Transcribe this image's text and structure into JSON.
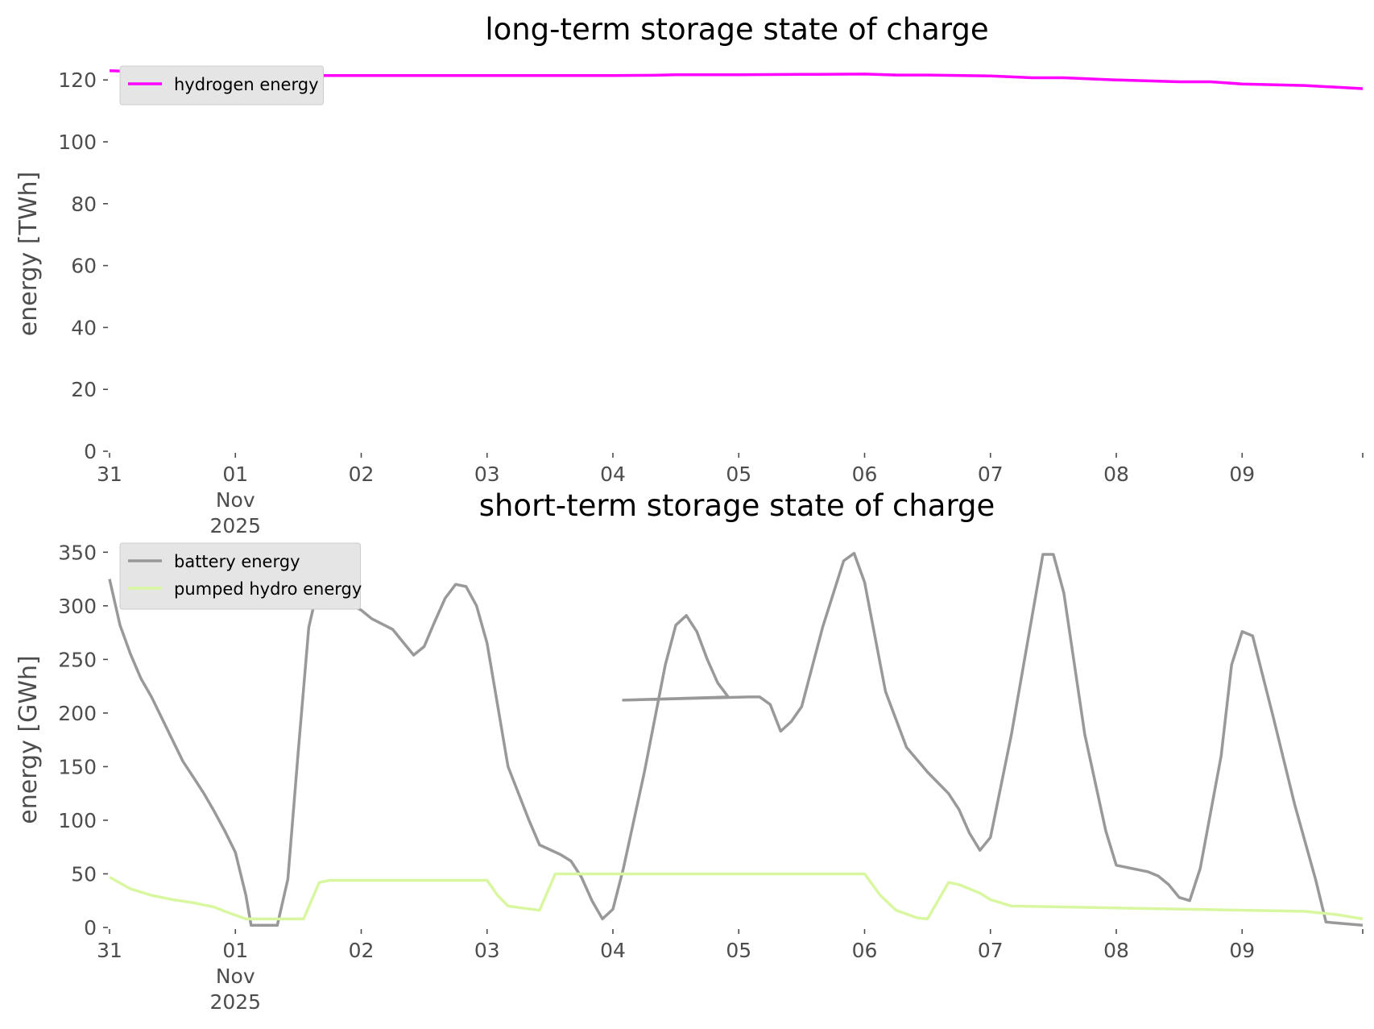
{
  "chart_data": [
    {
      "type": "line",
      "title": "long-term storage state of charge",
      "ylabel": "energy [TWh]",
      "xlabel": "",
      "ylim": [
        0,
        125
      ],
      "yticks": [
        0,
        20,
        40,
        60,
        80,
        100,
        120
      ],
      "xlim": [
        "2025-10-31 00:00",
        "2025-11-09 23:00"
      ],
      "xticks": [
        {
          "x": "2025-10-31",
          "lines": [
            "31"
          ]
        },
        {
          "x": "2025-11-01",
          "lines": [
            "01",
            "Nov",
            "2025"
          ]
        },
        {
          "x": "2025-11-02",
          "lines": [
            "02"
          ]
        },
        {
          "x": "2025-11-03",
          "lines": [
            "03"
          ]
        },
        {
          "x": "2025-11-04",
          "lines": [
            "04"
          ]
        },
        {
          "x": "2025-11-05",
          "lines": [
            "05"
          ]
        },
        {
          "x": "2025-11-06",
          "lines": [
            "06"
          ]
        },
        {
          "x": "2025-11-07",
          "lines": [
            "07"
          ]
        },
        {
          "x": "2025-11-08",
          "lines": [
            "08"
          ]
        },
        {
          "x": "2025-11-09",
          "lines": [
            "09"
          ]
        }
      ],
      "grid": false,
      "legend_position": "upper-left",
      "series": [
        {
          "name": "hydrogen energy",
          "color": "#ff00ff",
          "points": [
            [
              "2025-10-31 00:00",
              123.0
            ],
            [
              "2025-10-31 12:00",
              122.3
            ],
            [
              "2025-11-01 00:00",
              121.6
            ],
            [
              "2025-11-01 12:00",
              121.4
            ],
            [
              "2025-11-02 00:00",
              121.4
            ],
            [
              "2025-11-02 12:00",
              121.4
            ],
            [
              "2025-11-03 00:00",
              121.4
            ],
            [
              "2025-11-03 12:00",
              121.4
            ],
            [
              "2025-11-04 00:00",
              121.4
            ],
            [
              "2025-11-04 08:00",
              121.5
            ],
            [
              "2025-11-04 12:00",
              121.7
            ],
            [
              "2025-11-05 00:00",
              121.7
            ],
            [
              "2025-11-05 12:00",
              121.8
            ],
            [
              "2025-11-06 00:00",
              121.9
            ],
            [
              "2025-11-06 06:00",
              121.6
            ],
            [
              "2025-11-06 12:00",
              121.6
            ],
            [
              "2025-11-07 00:00",
              121.3
            ],
            [
              "2025-11-07 08:00",
              120.7
            ],
            [
              "2025-11-07 14:00",
              120.7
            ],
            [
              "2025-11-08 00:00",
              120.0
            ],
            [
              "2025-11-08 12:00",
              119.4
            ],
            [
              "2025-11-08 18:00",
              119.4
            ],
            [
              "2025-11-09 00:00",
              118.7
            ],
            [
              "2025-11-09 12:00",
              118.2
            ],
            [
              "2025-11-09 23:00",
              117.2
            ]
          ]
        }
      ]
    },
    {
      "type": "line",
      "title": "short-term storage state of charge",
      "ylabel": "energy [GWh]",
      "xlabel": "",
      "ylim": [
        0,
        360
      ],
      "yticks": [
        0,
        50,
        100,
        150,
        200,
        250,
        300,
        350
      ],
      "xlim": [
        "2025-10-31 00:00",
        "2025-11-09 23:00"
      ],
      "xticks": [
        {
          "x": "2025-10-31",
          "lines": [
            "31"
          ]
        },
        {
          "x": "2025-11-01",
          "lines": [
            "01",
            "Nov",
            "2025"
          ]
        },
        {
          "x": "2025-11-02",
          "lines": [
            "02"
          ]
        },
        {
          "x": "2025-11-03",
          "lines": [
            "03"
          ]
        },
        {
          "x": "2025-11-04",
          "lines": [
            "04"
          ]
        },
        {
          "x": "2025-11-05",
          "lines": [
            "05"
          ]
        },
        {
          "x": "2025-11-06",
          "lines": [
            "06"
          ]
        },
        {
          "x": "2025-11-07",
          "lines": [
            "07"
          ]
        },
        {
          "x": "2025-11-08",
          "lines": [
            "08"
          ]
        },
        {
          "x": "2025-11-09",
          "lines": [
            "09"
          ]
        }
      ],
      "grid": false,
      "legend_position": "upper-left",
      "series": [
        {
          "name": "battery energy",
          "color": "#999999",
          "points": [
            [
              "2025-10-31 00:00",
              325
            ],
            [
              "2025-10-31 02:00",
              282
            ],
            [
              "2025-10-31 04:00",
              255
            ],
            [
              "2025-10-31 06:00",
              232
            ],
            [
              "2025-10-31 08:00",
              215
            ],
            [
              "2025-10-31 10:00",
              195
            ],
            [
              "2025-10-31 12:00",
              175
            ],
            [
              "2025-10-31 14:00",
              155
            ],
            [
              "2025-10-31 16:00",
              140
            ],
            [
              "2025-10-31 18:00",
              125
            ],
            [
              "2025-10-31 20:00",
              108
            ],
            [
              "2025-10-31 22:00",
              90
            ],
            [
              "2025-11-01 00:00",
              70
            ],
            [
              "2025-11-01 02:00",
              30
            ],
            [
              "2025-11-01 03:00",
              2
            ],
            [
              "2025-11-01 08:00",
              2
            ],
            [
              "2025-11-01 10:00",
              45
            ],
            [
              "2025-11-01 12:00",
              165
            ],
            [
              "2025-11-01 14:00",
              280
            ],
            [
              "2025-11-01 16:00",
              322
            ],
            [
              "2025-11-01 18:00",
              320
            ],
            [
              "2025-11-01 20:00",
              306
            ],
            [
              "2025-11-02 00:00",
              296
            ],
            [
              "2025-11-02 02:00",
              288
            ],
            [
              "2025-11-02 06:00",
              278
            ],
            [
              "2025-11-02 08:00",
              266
            ],
            [
              "2025-11-02 10:00",
              254
            ],
            [
              "2025-11-02 12:00",
              262
            ],
            [
              "2025-11-02 14:00",
              285
            ],
            [
              "2025-11-02 16:00",
              307
            ],
            [
              "2025-11-02 18:00",
              320
            ],
            [
              "2025-11-02 20:00",
              318
            ],
            [
              "2025-11-02 22:00",
              300
            ],
            [
              "2025-11-03 00:00",
              265
            ],
            [
              "2025-11-03 04:00",
              150
            ],
            [
              "2025-11-03 08:00",
              100
            ],
            [
              "2025-11-03 10:00",
              77
            ],
            [
              "2025-11-03 14:00",
              68
            ],
            [
              "2025-11-03 16:00",
              62
            ],
            [
              "2025-11-03 18:00",
              47
            ],
            [
              "2025-11-03 20:00",
              25
            ],
            [
              "2025-11-03 22:00",
              8
            ],
            [
              "2025-11-04 00:00",
              17
            ],
            [
              "2025-11-04 02:00",
              55
            ],
            [
              "2025-11-04 06:00",
              145
            ],
            [
              "2025-11-04 10:00",
              245
            ],
            [
              "2025-11-04 12:00",
              282
            ],
            [
              "2025-11-04 14:00",
              291
            ],
            [
              "2025-11-04 16:00",
              276
            ],
            [
              "2025-11-04 18:00",
              250
            ],
            [
              "2025-11-04 20:00",
              228
            ],
            [
              "2025-11-04 22:00",
              215
            ],
            [
              "2025-11-04 02:00",
              212
            ],
            [
              "2025-11-05 02:00",
              215
            ],
            [
              "2025-11-05 04:00",
              215
            ],
            [
              "2025-11-05 06:00",
              208
            ],
            [
              "2025-11-05 08:00",
              183
            ],
            [
              "2025-11-05 10:00",
              192
            ],
            [
              "2025-11-05 12:00",
              206
            ],
            [
              "2025-11-05 16:00",
              280
            ],
            [
              "2025-11-05 20:00",
              342
            ],
            [
              "2025-11-05 22:00",
              349
            ],
            [
              "2025-11-06 00:00",
              322
            ],
            [
              "2025-11-06 04:00",
              220
            ],
            [
              "2025-11-06 08:00",
              168
            ],
            [
              "2025-11-06 12:00",
              145
            ],
            [
              "2025-11-06 16:00",
              125
            ],
            [
              "2025-11-06 18:00",
              110
            ],
            [
              "2025-11-06 20:00",
              88
            ],
            [
              "2025-11-06 22:00",
              72
            ],
            [
              "2025-11-07 00:00",
              84
            ],
            [
              "2025-11-07 04:00",
              180
            ],
            [
              "2025-11-07 10:00",
              348
            ],
            [
              "2025-11-07 12:00",
              348
            ],
            [
              "2025-11-07 14:00",
              312
            ],
            [
              "2025-11-07 18:00",
              180
            ],
            [
              "2025-11-07 22:00",
              90
            ],
            [
              "2025-11-08 00:00",
              58
            ],
            [
              "2025-11-08 06:00",
              52
            ],
            [
              "2025-11-08 08:00",
              48
            ],
            [
              "2025-11-08 10:00",
              40
            ],
            [
              "2025-11-08 12:00",
              28
            ],
            [
              "2025-11-08 14:00",
              25
            ],
            [
              "2025-11-08 16:00",
              55
            ],
            [
              "2025-11-08 20:00",
              160
            ],
            [
              "2025-11-08 22:00",
              245
            ],
            [
              "2025-11-09 00:00",
              276
            ],
            [
              "2025-11-09 02:00",
              272
            ],
            [
              "2025-11-09 06:00",
              195
            ],
            [
              "2025-11-09 10:00",
              115
            ],
            [
              "2025-11-09 14:00",
              45
            ],
            [
              "2025-11-09 16:00",
              5
            ],
            [
              "2025-11-09 23:00",
              2
            ]
          ]
        },
        {
          "name": "pumped hydro energy",
          "color": "#d9f7a1",
          "points": [
            [
              "2025-10-31 00:00",
              47
            ],
            [
              "2025-10-31 04:00",
              36
            ],
            [
              "2025-10-31 08:00",
              30
            ],
            [
              "2025-10-31 12:00",
              26
            ],
            [
              "2025-10-31 16:00",
              23
            ],
            [
              "2025-10-31 20:00",
              19
            ],
            [
              "2025-10-31 22:00",
              15
            ],
            [
              "2025-11-01 02:00",
              8
            ],
            [
              "2025-11-01 13:00",
              8
            ],
            [
              "2025-11-01 16:00",
              42
            ],
            [
              "2025-11-01 18:00",
              44
            ],
            [
              "2025-11-03 00:00",
              44
            ],
            [
              "2025-11-03 02:00",
              30
            ],
            [
              "2025-11-03 04:00",
              20
            ],
            [
              "2025-11-03 10:00",
              16
            ],
            [
              "2025-11-03 13:00",
              50
            ],
            [
              "2025-11-06 00:00",
              50
            ],
            [
              "2025-11-06 03:00",
              30
            ],
            [
              "2025-11-06 06:00",
              16
            ],
            [
              "2025-11-06 10:00",
              9
            ],
            [
              "2025-11-06 12:00",
              8
            ],
            [
              "2025-11-06 16:00",
              42
            ],
            [
              "2025-11-06 18:00",
              40
            ],
            [
              "2025-11-06 22:00",
              32
            ],
            [
              "2025-11-07 00:00",
              26
            ],
            [
              "2025-11-07 04:00",
              20
            ],
            [
              "2025-11-09 12:00",
              15
            ],
            [
              "2025-11-09 18:00",
              12
            ],
            [
              "2025-11-09 23:00",
              8
            ]
          ]
        }
      ]
    }
  ]
}
